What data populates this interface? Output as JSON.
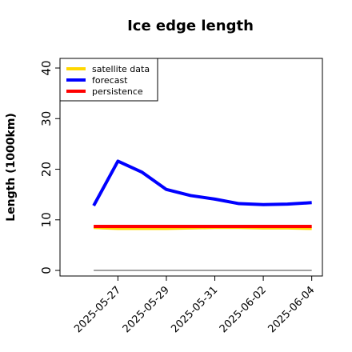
{
  "chart_data": {
    "type": "line",
    "title": "Ice edge length",
    "y_label": "Length (1000km)",
    "x": [
      "2025-05-26",
      "2025-05-27",
      "2025-05-28",
      "2025-05-29",
      "2025-05-30",
      "2025-05-31",
      "2025-06-01",
      "2025-06-02",
      "2025-06-03",
      "2025-06-04"
    ],
    "series": [
      {
        "name": "satellite data",
        "color": "#ffd700",
        "values": [
          8.5,
          8.3,
          8.3,
          8.3,
          8.4,
          8.5,
          8.5,
          8.4,
          8.4,
          8.3
        ]
      },
      {
        "name": "forecast",
        "color": "#0000ff",
        "values": [
          12.8,
          21.6,
          19.4,
          16.0,
          14.8,
          14.1,
          13.2,
          13.0,
          13.1,
          13.4
        ]
      },
      {
        "name": "persistence",
        "color": "#ff0000",
        "values": [
          8.7,
          8.7,
          8.7,
          8.7,
          8.7,
          8.7,
          8.7,
          8.7,
          8.7,
          8.7
        ]
      }
    ],
    "reference_line": {
      "value": 0,
      "color": "#808080"
    },
    "xlim": [
      "2025-05-24T14:38",
      "2025-06-04T10:34"
    ],
    "xticks": [
      "2025-05-27",
      "2025-05-29",
      "2025-05-31",
      "2025-06-02",
      "2025-06-04"
    ],
    "xtick_colors": [
      "#228b22",
      "#000000",
      "#000000",
      "#000000",
      "#000000"
    ],
    "ylim": [
      -1.1,
      41.9
    ],
    "yticks": [
      0,
      10,
      20,
      30,
      40
    ],
    "legend": "top-left"
  }
}
